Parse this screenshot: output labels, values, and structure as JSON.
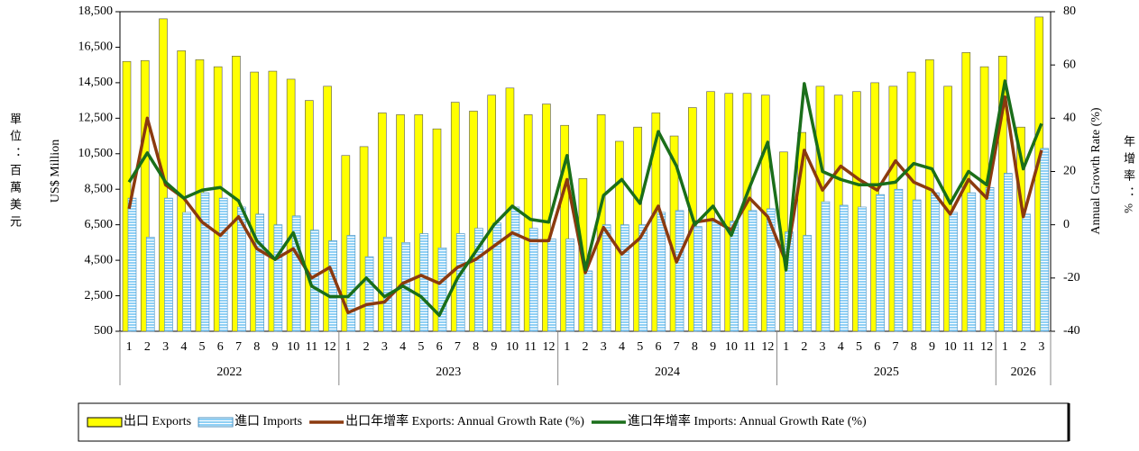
{
  "chart_data": {
    "type": "bar-line",
    "y_label": "US$ Million",
    "y_label_zh": "單位：百萬美元",
    "y2_label": "Annual Growth Rate (%)",
    "y2_label_zh": "年增率：%",
    "groups": [
      {
        "label": "2022",
        "categories": [
          "1",
          "2",
          "3",
          "4",
          "5",
          "6",
          "7",
          "8",
          "9",
          "10",
          "11",
          "12"
        ]
      },
      {
        "label": "2023",
        "categories": [
          "1",
          "2",
          "3",
          "4",
          "5",
          "6",
          "7",
          "8",
          "9",
          "10",
          "11",
          "12"
        ]
      },
      {
        "label": "2024",
        "categories": [
          "1",
          "2",
          "3",
          "4",
          "5",
          "6",
          "7",
          "8",
          "9",
          "10",
          "11",
          "12"
        ]
      },
      {
        "label": "2025",
        "categories": [
          "1",
          "2",
          "3",
          "4",
          "5",
          "6",
          "7",
          "8",
          "9",
          "10",
          "11",
          "12"
        ]
      },
      {
        "label": "2026",
        "categories": [
          "1",
          "2",
          "3"
        ]
      }
    ],
    "ylim": [
      500,
      18500
    ],
    "yticks": [
      500,
      {
        "value": 2500,
        "label": "2,500"
      },
      {
        "value": 4500,
        "label": "4,500"
      },
      {
        "value": 6500,
        "label": "6,500"
      },
      {
        "value": 8500,
        "label": "8,500"
      },
      {
        "value": 10500,
        "label": "10,500"
      },
      {
        "value": 12500,
        "label": "12,500"
      },
      {
        "value": 14500,
        "label": "14,500"
      },
      {
        "value": 16500,
        "label": "16,500"
      },
      {
        "value": 18500,
        "label": "18,500"
      }
    ],
    "y2lim": [
      -40,
      80
    ],
    "y2ticks": [
      -40,
      -20,
      0,
      20,
      40,
      60,
      80
    ],
    "series": [
      {
        "name": "出口 Exports",
        "kind": "bar",
        "color": "#ffff00",
        "values": [
          15700,
          15750,
          18100,
          16300,
          15800,
          15400,
          16000,
          15100,
          15150,
          14700,
          13500,
          14300,
          10400,
          10900,
          12800,
          12700,
          12700,
          11900,
          13400,
          12900,
          13800,
          14200,
          12700,
          13300,
          12100,
          9100,
          12700,
          11200,
          12000,
          12800,
          11500,
          13100,
          14000,
          13900,
          13900,
          13800,
          10600,
          11700,
          14300,
          13800,
          14000,
          14500,
          14300,
          15100,
          15800,
          14300,
          16200,
          15400,
          16000,
          12000,
          18200
        ]
      },
      {
        "name": "進口 Imports",
        "kind": "bar",
        "color": "#8fd0f5",
        "values": [
          8000,
          5800,
          8000,
          7200,
          8300,
          8000,
          7500,
          7100,
          6500,
          7000,
          6200,
          5600,
          5900,
          4700,
          5800,
          5500,
          6000,
          5200,
          6000,
          6300,
          6600,
          7500,
          6300,
          5700,
          5700,
          3900,
          6500,
          6500,
          6500,
          7200,
          7300,
          6400,
          6700,
          6700,
          7300,
          7400,
          6100,
          5900,
          7800,
          7600,
          7500,
          8200,
          8500,
          7900,
          8300,
          7200,
          8300,
          8600,
          9400,
          7100,
          10800
        ]
      },
      {
        "name": "出口年增率 Exports: Annual Growth Rate (%)",
        "kind": "line",
        "axis": "y2",
        "color": "#8b3a0f",
        "values": [
          6,
          40,
          15,
          10,
          1,
          -4,
          3,
          -9,
          -13,
          -9,
          -20,
          -16,
          -33,
          -30,
          -29,
          -22,
          -19,
          -22,
          -16,
          -13,
          -8,
          -3,
          -6,
          -6,
          17,
          -18,
          -1,
          -11,
          -5,
          7,
          -14,
          1,
          2,
          -2,
          10,
          3,
          -14,
          28,
          13,
          22,
          17,
          13,
          24,
          16,
          13,
          4,
          17,
          10,
          48,
          3,
          28
        ]
      },
      {
        "name": "進口年增率 Imports: Annual Growth Rate (%)",
        "kind": "line",
        "axis": "y2",
        "color": "#1a6e1a",
        "values": [
          16,
          27,
          16,
          10,
          13,
          14,
          9,
          -6,
          -13,
          -3,
          -23,
          -27,
          -27,
          -20,
          -27,
          -23,
          -27,
          -34,
          -20,
          -10,
          0,
          7,
          2,
          1,
          26,
          -17,
          11,
          17,
          8,
          35,
          22,
          0,
          7,
          -4,
          14,
          31,
          -17,
          53,
          20,
          17,
          15,
          15,
          16,
          23,
          21,
          8,
          20,
          15,
          54,
          21,
          38
        ]
      }
    ]
  }
}
